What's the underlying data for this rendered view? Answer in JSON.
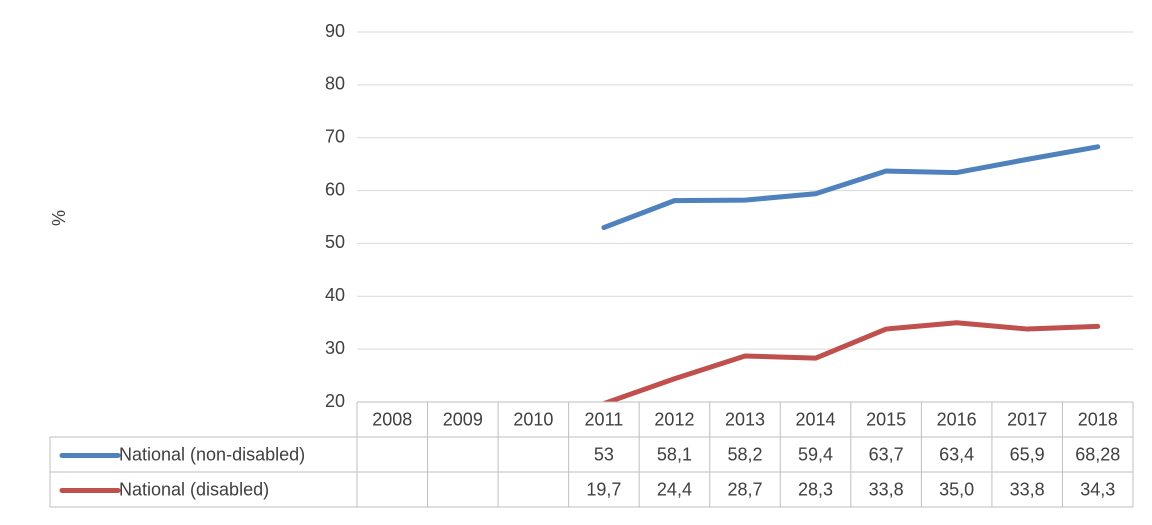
{
  "chart_data": {
    "type": "line",
    "y_label": "%",
    "categories": [
      "2008",
      "2009",
      "2010",
      "2011",
      "2012",
      "2013",
      "2014",
      "2015",
      "2016",
      "2017",
      "2018"
    ],
    "series": [
      {
        "name": "National (non-disabled)",
        "color": "#4f81bd",
        "values": [
          null,
          null,
          null,
          53,
          58.1,
          58.2,
          59.4,
          63.7,
          63.4,
          65.9,
          68.28
        ],
        "value_labels": [
          null,
          null,
          null,
          "53",
          "58,1",
          "58,2",
          "59,4",
          "63,7",
          "63,4",
          "65,9",
          "68,28"
        ]
      },
      {
        "name": "National (disabled)",
        "color": "#c0504d",
        "values": [
          null,
          null,
          null,
          19.7,
          24.4,
          28.7,
          28.3,
          33.8,
          35.0,
          33.8,
          34.3
        ],
        "value_labels": [
          null,
          null,
          null,
          "19,7",
          "24,4",
          "28,7",
          "28,3",
          "33,8",
          "35,0",
          "33,8",
          "34,3"
        ]
      }
    ],
    "ylim": [
      20,
      90
    ],
    "yticks": [
      20,
      30,
      40,
      50,
      60,
      70,
      80,
      90
    ],
    "grid": true,
    "data_table": true
  }
}
